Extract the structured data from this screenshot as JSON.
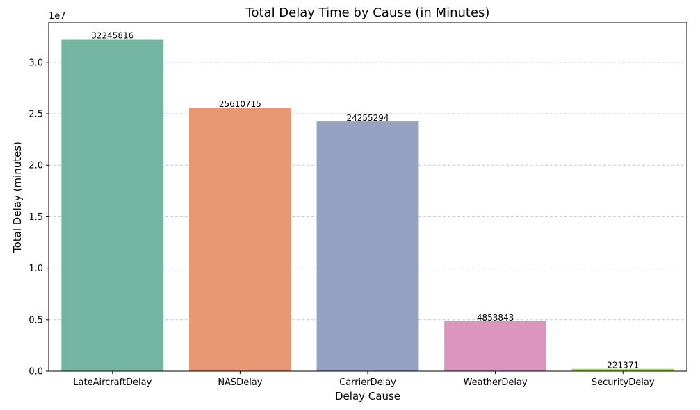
{
  "chart_data": {
    "type": "bar",
    "title": "Total Delay Time by Cause (in Minutes)",
    "xlabel": "Delay Cause",
    "ylabel": "Total Delay (minutes)",
    "y_offset_label": "1e7",
    "y_tick_labels": [
      "0.0",
      "0.5",
      "1.0",
      "1.5",
      "2.0",
      "2.5",
      "3.0"
    ],
    "y_tick_values": [
      0,
      5000000,
      10000000,
      15000000,
      20000000,
      25000000,
      30000000
    ],
    "ylim": [
      0,
      33900000
    ],
    "grid": "y-dashed",
    "categories": [
      "LateAircraftDelay",
      "NASDelay",
      "CarrierDelay",
      "WeatherDelay",
      "SecurityDelay"
    ],
    "values": [
      32245816,
      25610715,
      24255294,
      4853843,
      221371
    ],
    "value_labels": [
      "32245816",
      "25610715",
      "24255294",
      "4853843",
      "221371"
    ],
    "colors": [
      "#72b6a1",
      "#e99675",
      "#95a3c3",
      "#db96c0",
      "#a6d854"
    ]
  }
}
